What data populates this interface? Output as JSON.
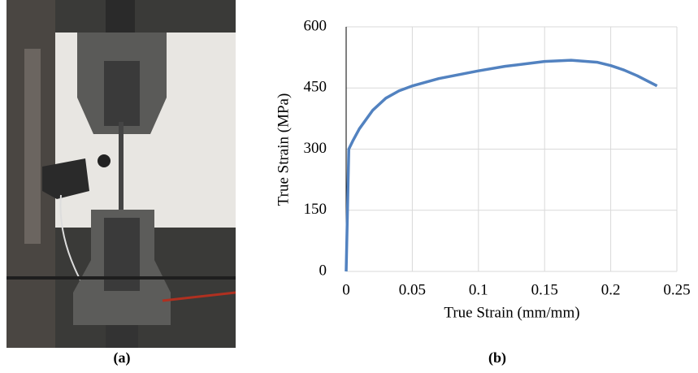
{
  "captions": [
    "(a)",
    "(b)"
  ],
  "chart_data": {
    "type": "line",
    "xlabel": "True Strain (mm/mm)",
    "ylabel": "True Strain (MPa)",
    "x": [
      0,
      0.002,
      0.005,
      0.01,
      0.02,
      0.03,
      0.04,
      0.05,
      0.07,
      0.1,
      0.12,
      0.15,
      0.17,
      0.19,
      0.2,
      0.21,
      0.22,
      0.235
    ],
    "values": [
      0,
      300,
      320,
      350,
      395,
      425,
      443,
      455,
      473,
      492,
      503,
      515,
      518,
      513,
      505,
      494,
      480,
      455
    ],
    "color": "#5282c0",
    "xlim": [
      0,
      0.25
    ],
    "xticks": [
      0,
      0.05,
      0.1,
      0.15,
      0.2,
      0.25
    ],
    "ylim": [
      0,
      600
    ],
    "yticks": [
      0,
      150,
      300,
      450,
      600
    ],
    "grid": true
  }
}
